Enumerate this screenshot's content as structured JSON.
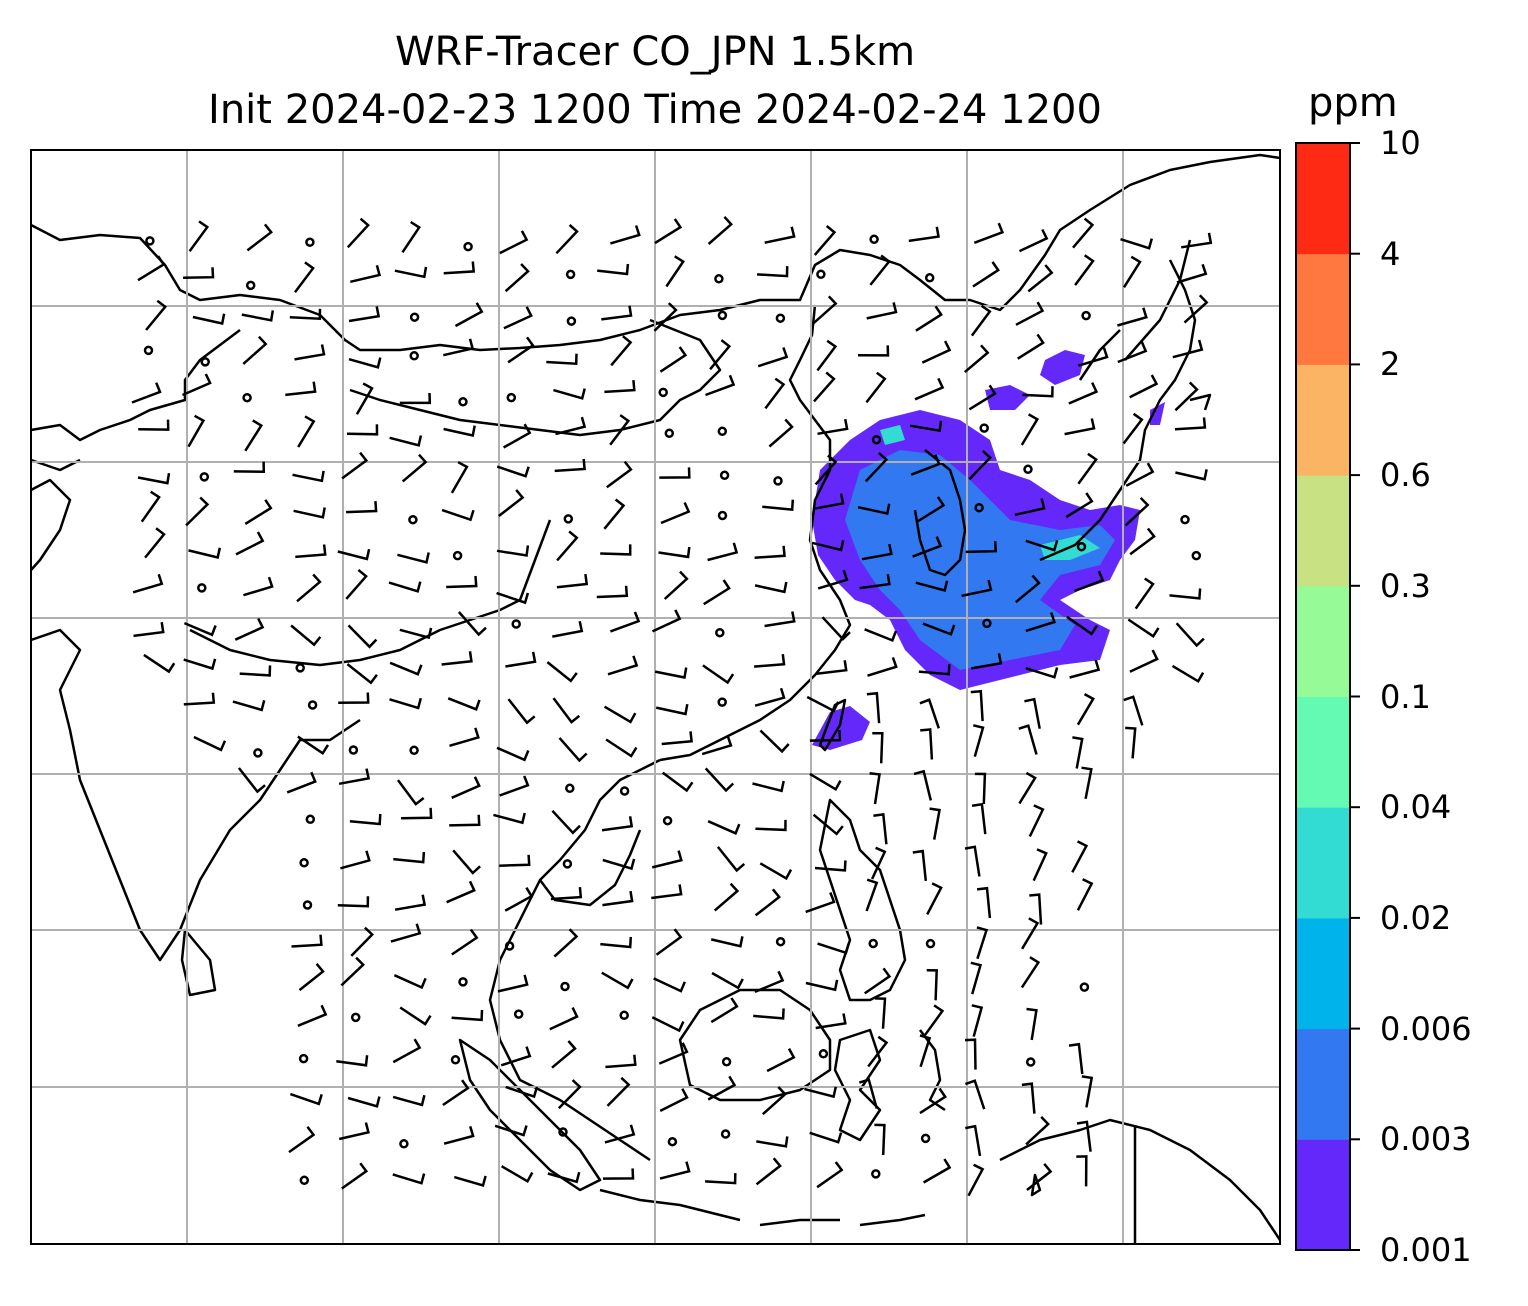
{
  "title": {
    "line1": "WRF-Tracer CO_JPN 1.5km",
    "line2": "Init 2024-02-23 1200 Time 2024-02-24 1200"
  },
  "colorbar": {
    "unit": "ppm",
    "levels": [
      "0.001",
      "0.003",
      "0.006",
      "0.02",
      "0.04",
      "0.1",
      "0.3",
      "0.6",
      "2",
      "4",
      "10"
    ],
    "colors": [
      "#6428fa",
      "#3278f0",
      "#00b4eb",
      "#32dcd2",
      "#64fab4",
      "#96fa96",
      "#c8e182",
      "#fab464",
      "#ff7840",
      "#ff2a14"
    ]
  },
  "map": {
    "gridline_color": "#b0b0b0",
    "coastline_color": "#000000",
    "overlay": "wind barbs",
    "field": "CO tracer concentration"
  }
}
